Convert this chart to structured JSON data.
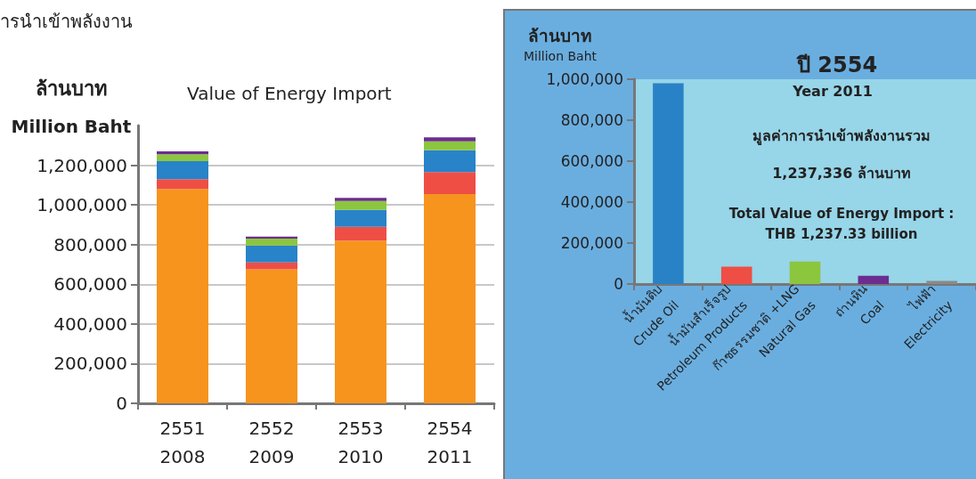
{
  "chart_data": [
    {
      "type": "bar",
      "title": "Value of Energy Import",
      "ylabel": "ล้านบาท\nMillion Baht",
      "annotations": [
        "ารนำเข้าพลังงาน"
      ],
      "categories": [
        "2551\n2008",
        "2552\n2009",
        "2553\n2010",
        "2554\n2011"
      ],
      "stacked": true,
      "series": [
        {
          "color": "#f7941d",
          "values": [
            1080000,
            675000,
            820000,
            1055000
          ]
        },
        {
          "color": "#ef4e45",
          "values": [
            50000,
            35000,
            70000,
            110000
          ]
        },
        {
          "color": "#2883c9",
          "values": [
            90000,
            85000,
            85000,
            110000
          ]
        },
        {
          "color": "#8cc63f",
          "values": [
            35000,
            35000,
            45000,
            45000
          ]
        },
        {
          "color": "#6c2c91",
          "values": [
            15000,
            10000,
            15000,
            20000
          ]
        }
      ],
      "ylim": [
        0,
        1400000
      ],
      "yticks": [
        0,
        {
          "value": 200000,
          "label": "200,000"
        },
        {
          "value": 400000,
          "label": "400,000"
        },
        {
          "value": 600000,
          "label": "600,000"
        },
        {
          "value": 800000,
          "label": "800,000"
        },
        {
          "value": 1000000,
          "label": "1,000,000"
        },
        {
          "value": 1200000,
          "label": "1,200,000"
        }
      ],
      "grid": "y"
    },
    {
      "type": "bar",
      "title": "ปี 2554",
      "ylabel": "ล้านบาท\nMillion Baht",
      "annotations": [
        "Year 2011",
        "มูลค่าการนำเข้าพลังงานรวม",
        "1,237,336 ล้านบาท",
        "Total Value of Energy Import :\nTHB 1,237.33 billion"
      ],
      "categories": [
        "น้ำมันดิบ\nCrude Oil",
        "น้ำมันสำเร็จรูป\nPetroleum Products",
        "ก๊าซธรรมชาติ +LNG\nNatural Gas",
        "ถ่านหิน\nCoal",
        "ไฟฟ้า\nElectricity"
      ],
      "values": [
        980000,
        85000,
        110000,
        40000,
        15000
      ],
      "colors": [
        "#2a82c6",
        "#ef4e45",
        "#8cc63f",
        "#6c2c91",
        "#8a8a8a"
      ],
      "ylim": [
        0,
        1000000
      ],
      "yticks": [
        0,
        {
          "value": 200000,
          "label": "200,000"
        },
        {
          "value": 400000,
          "label": "400,000"
        },
        {
          "value": 600000,
          "label": "600,000"
        },
        {
          "value": 800000,
          "label": "800,000"
        },
        {
          "value": 1000000,
          "label": "1,000,000"
        }
      ],
      "grid": false
    }
  ]
}
